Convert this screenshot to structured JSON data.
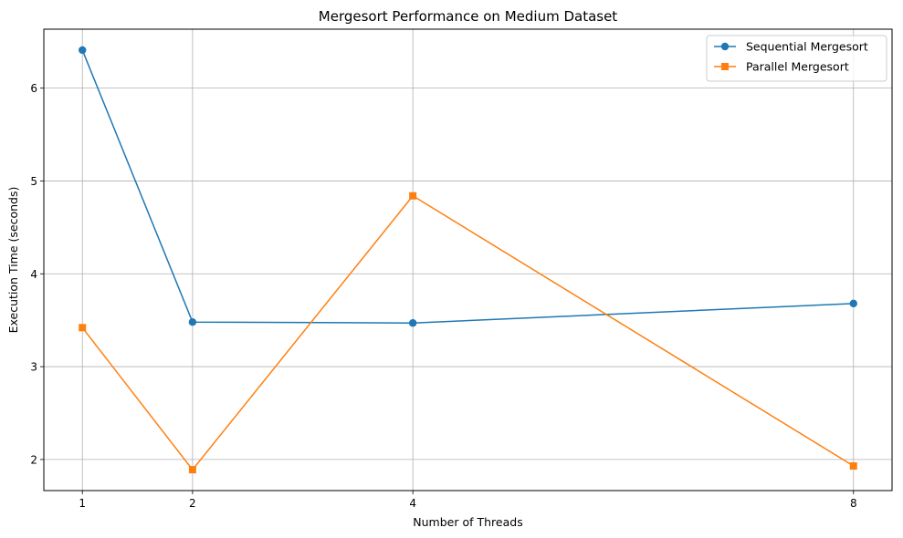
{
  "chart_data": {
    "type": "line",
    "title": "Mergesort Performance on Medium Dataset",
    "xlabel": "Number of Threads",
    "ylabel": "Execution Time (seconds)",
    "x": [
      1,
      2,
      4,
      8
    ],
    "xticks": [
      "1",
      "2",
      "4",
      "8"
    ],
    "yticks": [
      "2",
      "3",
      "4",
      "5",
      "6"
    ],
    "xlim": [
      0.65,
      8.35
    ],
    "ylim": [
      1.665,
      6.635
    ],
    "grid": true,
    "legend_position": "top-right",
    "series": [
      {
        "name": "Sequential Mergesort",
        "color": "#1f77b4",
        "marker": "circle",
        "values": [
          6.41,
          3.48,
          3.47,
          3.68
        ]
      },
      {
        "name": "Parallel Mergesort",
        "color": "#ff7f0e",
        "marker": "square",
        "values": [
          3.42,
          1.89,
          4.84,
          1.93
        ]
      }
    ]
  }
}
